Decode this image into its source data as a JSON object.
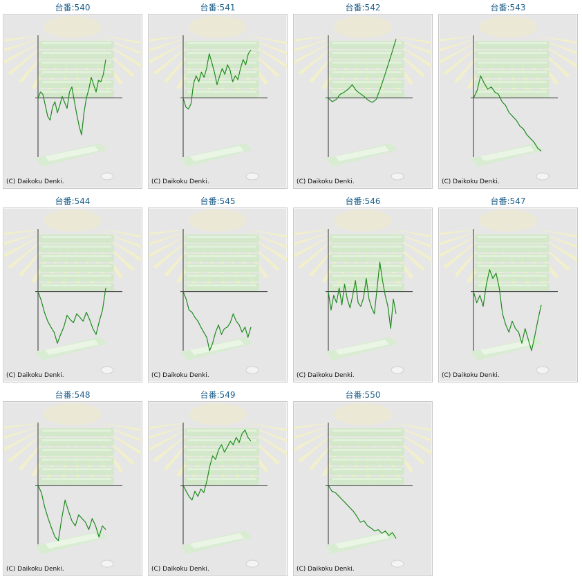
{
  "copyright": "(C) Daikoku Denki.",
  "colors": {
    "title": "#1d5f8a",
    "line": "#1e8a1e",
    "axis": "#333333",
    "panel": "#e6e6e6"
  },
  "chart_data": [
    {
      "type": "line",
      "title": "台番:540",
      "xlim": [
        0,
        100
      ],
      "ylim": [
        -80,
        85
      ],
      "series": [
        {
          "values": [
            0,
            8,
            5,
            -10,
            -25,
            -30,
            -12,
            -5,
            -20,
            -10,
            2,
            -6,
            -14,
            8,
            15,
            -4,
            -22,
            -38,
            -50,
            -20,
            0,
            12,
            28,
            18,
            8,
            24,
            22,
            32,
            52
          ]
        }
      ]
    },
    {
      "type": "line",
      "title": "台番:541",
      "xlim": [
        0,
        100
      ],
      "ylim": [
        -80,
        85
      ],
      "series": [
        {
          "values": [
            0,
            -12,
            -15,
            -8,
            20,
            30,
            22,
            35,
            28,
            40,
            60,
            48,
            35,
            18,
            30,
            40,
            32,
            45,
            38,
            22,
            30,
            25,
            40,
            52,
            45,
            60,
            65
          ]
        }
      ]
    },
    {
      "type": "line",
      "title": "台番:542",
      "xlim": [
        0,
        100
      ],
      "ylim": [
        -80,
        85
      ],
      "series": [
        {
          "values": [
            0,
            -5,
            -2,
            5,
            8,
            12,
            18,
            10,
            6,
            2,
            -3,
            -6,
            -2,
            12,
            28,
            45,
            62,
            80
          ]
        }
      ]
    },
    {
      "type": "line",
      "title": "台番:543",
      "xlim": [
        0,
        100
      ],
      "ylim": [
        -80,
        85
      ],
      "series": [
        {
          "values": [
            0,
            10,
            30,
            20,
            12,
            15,
            8,
            5,
            -5,
            -10,
            -20,
            -25,
            -30,
            -38,
            -42,
            -50,
            -55,
            -60,
            -68,
            -72
          ]
        }
      ]
    },
    {
      "type": "line",
      "title": "台番:544",
      "xlim": [
        0,
        100
      ],
      "ylim": [
        -80,
        85
      ],
      "series": [
        {
          "values": [
            0,
            -12,
            -28,
            -40,
            -48,
            -55,
            -70,
            -58,
            -48,
            -32,
            -38,
            -42,
            -30,
            -35,
            -40,
            -28,
            -38,
            -50,
            -58,
            -40,
            -25,
            5
          ]
        }
      ]
    },
    {
      "type": "line",
      "title": "台番:545",
      "xlim": [
        0,
        100
      ],
      "ylim": [
        -80,
        85
      ],
      "series": [
        {
          "values": [
            0,
            -10,
            -25,
            -28,
            -35,
            -40,
            -48,
            -55,
            -62,
            -80,
            -70,
            -55,
            -45,
            -58,
            -50,
            -48,
            -42,
            -30,
            -40,
            -45,
            -55,
            -48,
            -62,
            -48
          ]
        }
      ]
    },
    {
      "type": "line",
      "title": "台番:546",
      "xlim": [
        0,
        100
      ],
      "ylim": [
        -80,
        85
      ],
      "series": [
        {
          "values": [
            0,
            -25,
            -5,
            -15,
            5,
            -18,
            10,
            -10,
            -22,
            -5,
            15,
            -15,
            -20,
            -8,
            18,
            -10,
            -22,
            -30,
            5,
            40,
            15,
            -5,
            -20,
            -50,
            -10,
            -30
          ]
        }
      ]
    },
    {
      "type": "line",
      "title": "台番:547",
      "xlim": [
        0,
        100
      ],
      "ylim": [
        -80,
        85
      ],
      "series": [
        {
          "values": [
            0,
            -15,
            -5,
            -20,
            10,
            30,
            18,
            25,
            5,
            -30,
            -45,
            -55,
            -40,
            -50,
            -55,
            -70,
            -50,
            -65,
            -80,
            -60,
            -38,
            -18
          ]
        }
      ]
    },
    {
      "type": "line",
      "title": "台番:548",
      "xlim": [
        0,
        100
      ],
      "ylim": [
        -80,
        85
      ],
      "series": [
        {
          "values": [
            0,
            -10,
            -30,
            -45,
            -58,
            -70,
            -75,
            -45,
            -20,
            -35,
            -48,
            -55,
            -40,
            -45,
            -50,
            -60,
            -45,
            -55,
            -70,
            -55,
            -60
          ]
        }
      ]
    },
    {
      "type": "line",
      "title": "台番:549",
      "xlim": [
        0,
        100
      ],
      "ylim": [
        -80,
        85
      ],
      "series": [
        {
          "values": [
            0,
            -8,
            -15,
            -20,
            -8,
            -15,
            -5,
            -10,
            5,
            25,
            40,
            35,
            48,
            55,
            45,
            52,
            60,
            55,
            65,
            58,
            70,
            75,
            65,
            60
          ]
        }
      ]
    },
    {
      "type": "line",
      "title": "台番:550",
      "xlim": [
        0,
        100
      ],
      "ylim": [
        -80,
        85
      ],
      "series": [
        {
          "values": [
            0,
            -8,
            -10,
            -15,
            -20,
            -25,
            -30,
            -35,
            -42,
            -50,
            -48,
            -55,
            -58,
            -62,
            -60,
            -65,
            -62,
            -68,
            -64,
            -72
          ]
        }
      ]
    }
  ]
}
